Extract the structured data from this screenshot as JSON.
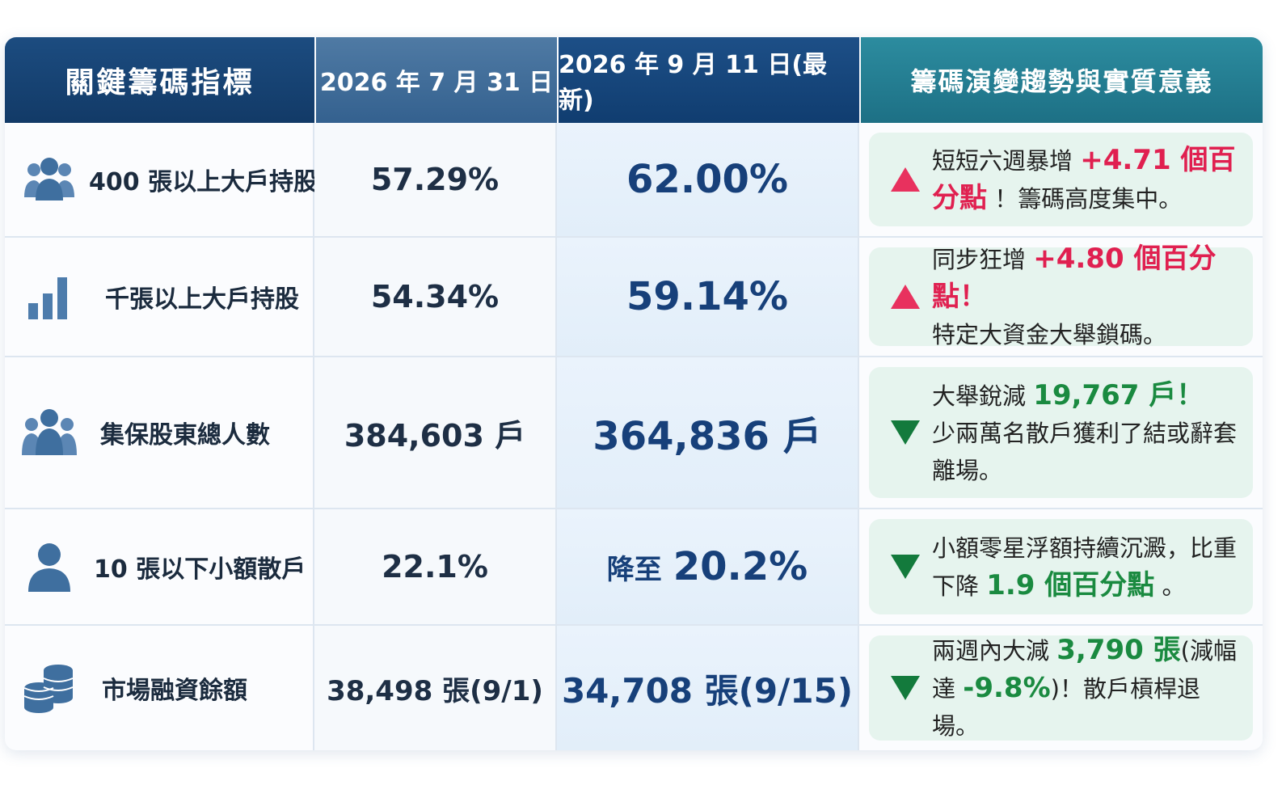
{
  "headers": {
    "indicator": "關鍵籌碼指標",
    "date_old": "2026 年 7 月 31 日",
    "date_new": "2026 年 9 月 11 日(最新)",
    "meaning": "籌碼演變趨勢與實質意義"
  },
  "colors": {
    "up": "#e8315e",
    "down": "#137a3c",
    "header_dark": "#143f6e",
    "header_teal": "#237d90"
  },
  "rows": [
    {
      "icon": "group-icon",
      "label": "400 張以上大戶持股",
      "old": "57.29%",
      "new": "62.00%",
      "direction": "up",
      "desc_a": "短短六週暴增",
      "desc_hl": "+4.71 個百分點",
      "desc_b": "！籌碼高度集中。"
    },
    {
      "icon": "bar-chart-icon",
      "label": "千張以上大戶持股",
      "old": "54.34%",
      "new": "59.14%",
      "direction": "up",
      "desc_a": "同步狂增",
      "desc_hl": "+4.80 個百分點！",
      "desc_b": "特定大資金大舉鎖碼。"
    },
    {
      "icon": "people-icon",
      "label": "集保股東總人數",
      "old": "384,603 戶",
      "new": "364,836 戶",
      "direction": "down",
      "desc_a": "大舉銳減",
      "desc_hl": "19,767 戶！",
      "desc_b": "少兩萬名散戶獲利了結或辭套離場。"
    },
    {
      "icon": "person-icon",
      "label": "10 張以下小額散戶",
      "old": "22.1%",
      "new_prefix": "降至",
      "new": "20.2%",
      "direction": "down",
      "desc_a": "小額零星浮額持續沉澱，比重下降",
      "desc_hl": "1.9 個百分點",
      "desc_b": "。"
    },
    {
      "icon": "coins-icon",
      "label": "市場融資餘額",
      "old": "38,498 張(9/1)",
      "new": "34,708 張(9/15)",
      "direction": "down",
      "desc_a": "兩週內大減",
      "desc_hl": "3,790 張",
      "desc_b": "(減幅達",
      "desc_hl2": "-9.8%",
      "desc_c": ")！散戶槓桿退場。"
    }
  ]
}
